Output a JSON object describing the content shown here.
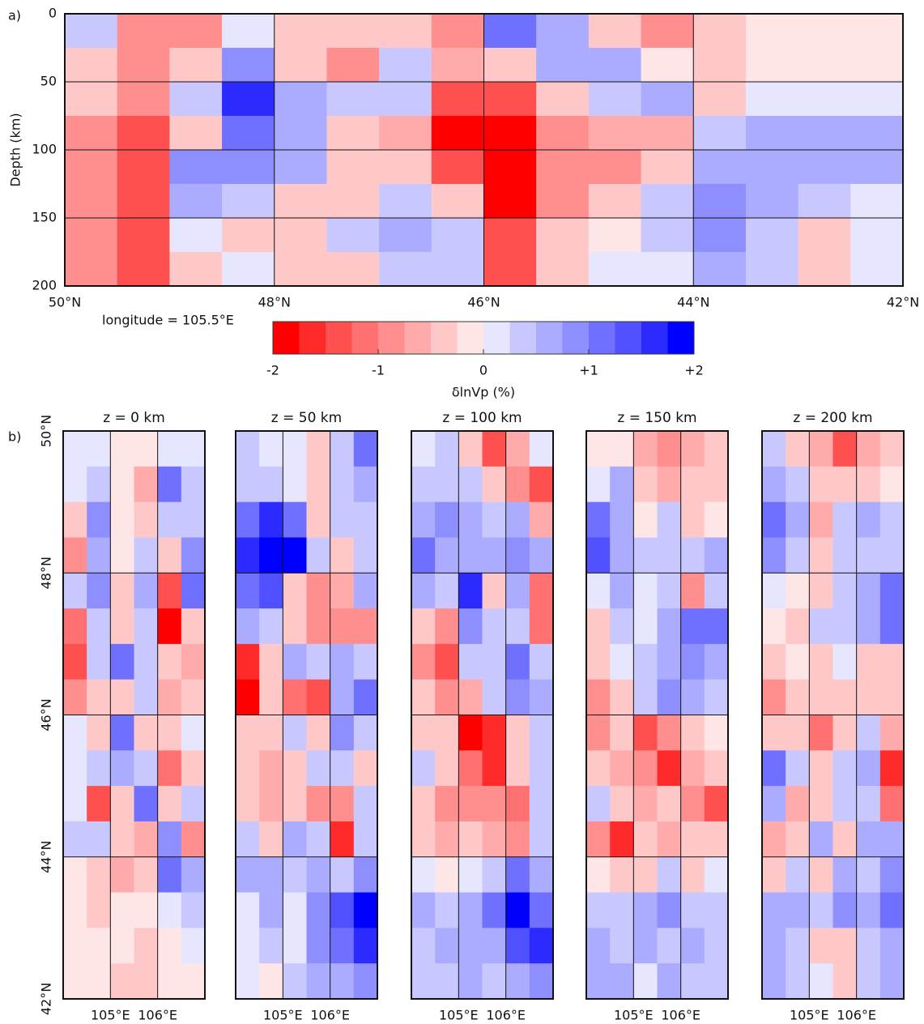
{
  "chart_data": [
    {
      "type": "heatmap",
      "panel_label": "a)",
      "annotation": "longitude = 105.5°E",
      "ylabel": "Depth (km)",
      "x": [
        49.75,
        49.25,
        48.75,
        48.25,
        47.75,
        47.25,
        46.75,
        46.25,
        45.75,
        45.25,
        44.75,
        44.25,
        43.75,
        43.25,
        42.75,
        42.25
      ],
      "y": [
        12.5,
        37.5,
        62.5,
        87.5,
        112.5,
        137.5,
        162.5,
        187.5
      ],
      "values": [
        [
          0.3,
          -0.8,
          -1,
          0.2,
          -0.5,
          -0.3,
          -0.5,
          -0.8,
          1.2,
          0.5,
          -0.3,
          -0.8,
          -0.3,
          -0.2,
          -0.2,
          -0.2
        ],
        [
          -0.3,
          -0.8,
          -0.5,
          0.8,
          -0.3,
          -0.8,
          0.3,
          -0.6,
          -0.3,
          0.5,
          0.6,
          -0.2,
          -0.3,
          -0.2,
          -0.2,
          -0.2
        ],
        [
          -0.5,
          -0.8,
          0.3,
          1.5,
          0.5,
          0.3,
          0.4,
          -1.5,
          -1.5,
          -0.3,
          0.3,
          0.5,
          -0.3,
          0.2,
          0.2,
          0.2
        ],
        [
          -0.8,
          -1.3,
          -0.3,
          1.0,
          0.5,
          -0.5,
          -0.7,
          -1.8,
          -1.8,
          -1.0,
          -0.6,
          -0.6,
          0.4,
          0.6,
          0.6,
          0.5
        ],
        [
          -0.8,
          -1.5,
          0.8,
          0.9,
          0.5,
          -0.3,
          -0.5,
          -1.5,
          -2,
          -1.0,
          -0.8,
          -0.5,
          0.5,
          0.5,
          0.7,
          0.5
        ],
        [
          -0.8,
          -1.3,
          0.5,
          0.4,
          -0.3,
          -0.3,
          0.3,
          -0.5,
          -1.8,
          -0.8,
          -0.3,
          0.3,
          0.8,
          0.5,
          0.3,
          0.2
        ],
        [
          -0.8,
          -1.3,
          0.2,
          -0.3,
          -0.3,
          0.3,
          0.6,
          0.3,
          -1.5,
          -0.5,
          -0.2,
          0.3,
          0.9,
          0.4,
          -0.3,
          0.2
        ],
        [
          -0.8,
          -1.5,
          -0.3,
          0.2,
          -0.5,
          -0.3,
          0.3,
          0.3,
          -1.5,
          -0.3,
          0.2,
          0.2,
          0.6,
          0.3,
          -0.5,
          0.2
        ]
      ],
      "xlim": [
        50,
        42
      ],
      "ylim": [
        200,
        0
      ],
      "xticks": [
        {
          "value": 50,
          "label": "50°N"
        },
        {
          "value": 48,
          "label": "48°N"
        },
        {
          "value": 46,
          "label": "46°N"
        },
        {
          "value": 44,
          "label": "44°N"
        },
        {
          "value": 42,
          "label": "42°N"
        }
      ],
      "yticks": [
        0,
        50,
        100,
        150,
        200
      ],
      "grid": true,
      "colorbar": {
        "label": "δlnVp (%)",
        "clim": [
          -2,
          2
        ],
        "ticks": [
          -2,
          -1,
          0,
          {
            "value": 1,
            "label": "+1"
          },
          {
            "value": 2,
            "label": "+2"
          }
        ],
        "colors": [
          "#ff0000",
          "#ff2b2b",
          "#ff5050",
          "#ff7070",
          "#ff8e8e",
          "#ffabab",
          "#ffc8c8",
          "#ffe6e6",
          "#e6e6ff",
          "#c8c8ff",
          "#ababff",
          "#8e8eff",
          "#7070ff",
          "#5050ff",
          "#2b2bff",
          "#0000ff"
        ]
      }
    },
    {
      "type": "heatmap",
      "panel_label": "b)",
      "title": "z = 0 km",
      "x": [
        104.25,
        104.75,
        105.25,
        105.75,
        106.25,
        106.75
      ],
      "y": [
        49.75,
        49.25,
        48.75,
        48.25,
        47.75,
        47.25,
        46.75,
        46.25,
        45.75,
        45.25,
        44.75,
        44.25,
        43.75,
        43.25,
        42.75,
        42.25
      ],
      "values": [
        [
          0.2,
          0.2,
          -0.2,
          -0.2,
          0.2,
          0.2
        ],
        [
          0.2,
          0.3,
          -0.2,
          -0.7,
          1.0,
          0.3
        ],
        [
          -0.3,
          0.8,
          -0.2,
          -0.5,
          0.4,
          0.3
        ],
        [
          -1,
          0.7,
          -0.2,
          0.3,
          -0.3,
          0.8
        ],
        [
          0.3,
          0.8,
          -0.4,
          0.5,
          -1.5,
          1.2
        ],
        [
          -1.2,
          0.3,
          -0.3,
          0.3,
          -1.8,
          -0.3
        ],
        [
          -1.5,
          0.4,
          1.0,
          0.3,
          -0.5,
          -0.6
        ],
        [
          -0.8,
          -0.5,
          -0.5,
          0.3,
          -0.6,
          -0.3
        ],
        [
          0.2,
          -0.3,
          1.0,
          -0.5,
          -0.5,
          0.2
        ],
        [
          0.2,
          0.3,
          0.5,
          0.4,
          -1.2,
          -0.3
        ],
        [
          0.2,
          -1.3,
          -0.3,
          1.0,
          -0.3,
          0.3
        ],
        [
          0.3,
          0.3,
          -0.3,
          -0.6,
          0.8,
          -1.0
        ],
        [
          -0.2,
          -0.3,
          -0.6,
          -0.3,
          1.0,
          0.6
        ],
        [
          -0.2,
          -0.3,
          -0.2,
          -0.2,
          0.2,
          0.3
        ],
        [
          -0.2,
          -0.2,
          -0.2,
          -0.4,
          -0.2,
          0.2
        ],
        [
          -0.2,
          -0.2,
          -0.3,
          -0.3,
          -0.2,
          -0.2
        ]
      ],
      "xlim": [
        104,
        107
      ],
      "ylim": [
        42,
        50
      ],
      "xticks": [
        {
          "value": 105,
          "label": "105°E"
        },
        {
          "value": 106,
          "label": "106°E"
        }
      ],
      "yticks": [
        {
          "value": 42,
          "label": "42°N"
        },
        {
          "value": 44,
          "label": "44°N"
        },
        {
          "value": 46,
          "label": "46°N"
        },
        {
          "value": 48,
          "label": "48°N"
        },
        {
          "value": 50,
          "label": "50°N"
        }
      ],
      "grid": true
    },
    {
      "type": "heatmap",
      "title": "z = 50 km",
      "x": [
        104.25,
        104.75,
        105.25,
        105.75,
        106.25,
        106.75
      ],
      "y": [
        49.75,
        49.25,
        48.75,
        48.25,
        47.75,
        47.25,
        46.75,
        46.25,
        45.75,
        45.25,
        44.75,
        44.25,
        43.75,
        43.25,
        42.75,
        42.25
      ],
      "values": [
        [
          0.3,
          0.2,
          0.2,
          -0.4,
          0.3,
          1.0
        ],
        [
          0.3,
          0.3,
          0.2,
          -0.5,
          0.3,
          0.6
        ],
        [
          1.2,
          1.5,
          1.0,
          -0.3,
          0.3,
          0.4
        ],
        [
          1.5,
          2.0,
          1.8,
          0.3,
          -0.3,
          0.3
        ],
        [
          1.0,
          1.4,
          -0.5,
          -0.8,
          -0.6,
          0.6
        ],
        [
          0.5,
          0.3,
          -0.5,
          -1.0,
          -0.8,
          -1.0
        ],
        [
          -1.6,
          -0.3,
          0.5,
          0.3,
          0.5,
          0.3
        ],
        [
          -1.8,
          -0.4,
          -1.2,
          -1.5,
          0.5,
          1.2
        ],
        [
          -0.5,
          -0.5,
          0.3,
          -0.3,
          0.8,
          0.3
        ],
        [
          -0.4,
          -0.6,
          -0.3,
          0.3,
          0.3,
          -0.3
        ],
        [
          -0.3,
          -0.6,
          -0.3,
          -0.8,
          -1.0,
          0.3
        ],
        [
          0.3,
          -0.3,
          0.5,
          0.4,
          -1.6,
          0.3
        ],
        [
          0.5,
          0.6,
          0.3,
          0.5,
          0.4,
          0.8
        ],
        [
          0.2,
          0.6,
          0.2,
          0.8,
          1.4,
          2.0
        ],
        [
          0.2,
          0.3,
          0.2,
          0.8,
          1.2,
          1.6
        ],
        [
          0.2,
          -0.2,
          0.3,
          0.6,
          0.5,
          0.8
        ]
      ],
      "xlim": [
        104,
        107
      ],
      "ylim": [
        42,
        50
      ],
      "xticks": [
        {
          "value": 105,
          "label": "105°E"
        },
        {
          "value": 106,
          "label": "106°E"
        }
      ],
      "yticks": [
        44,
        46,
        48
      ],
      "ytick_labels": false,
      "grid": true
    },
    {
      "type": "heatmap",
      "title": "z = 100 km",
      "x": [
        104.25,
        104.75,
        105.25,
        105.75,
        106.25,
        106.75
      ],
      "y": [
        49.75,
        49.25,
        48.75,
        48.25,
        47.75,
        47.25,
        46.75,
        46.25,
        45.75,
        45.25,
        44.75,
        44.25,
        43.75,
        43.25,
        42.75,
        42.25
      ],
      "values": [
        [
          0.2,
          0.3,
          -0.3,
          -1.3,
          -0.6,
          0.2
        ],
        [
          0.3,
          0.4,
          0.3,
          -0.5,
          -0.8,
          -1.5
        ],
        [
          0.5,
          0.8,
          0.5,
          0.3,
          0.5,
          -0.6
        ],
        [
          1.0,
          0.6,
          0.5,
          0.6,
          0.8,
          0.5
        ],
        [
          0.5,
          0.4,
          1.6,
          -0.3,
          0.5,
          -1.2
        ],
        [
          -0.3,
          -1.0,
          0.8,
          0.3,
          0.3,
          -1.2
        ],
        [
          -1.0,
          -1.5,
          0.3,
          0.3,
          1.2,
          0.3
        ],
        [
          -0.3,
          -0.8,
          -0.6,
          0.3,
          0.8,
          0.5
        ],
        [
          -0.5,
          -0.3,
          -1.8,
          -1.6,
          -0.3,
          0.3
        ],
        [
          0.3,
          -0.5,
          -1.2,
          -1.6,
          -0.4,
          0.3
        ],
        [
          -0.5,
          -0.8,
          -0.8,
          -1.0,
          -1.2,
          0.3
        ],
        [
          -0.5,
          -0.6,
          -0.3,
          -0.6,
          -1.0,
          0.3
        ],
        [
          0.2,
          -0.2,
          0.2,
          0.3,
          1.0,
          0.5
        ],
        [
          0.5,
          0.3,
          0.5,
          1.0,
          1.8,
          1.0
        ],
        [
          0.3,
          0.5,
          0.6,
          0.6,
          1.4,
          1.6
        ],
        [
          0.4,
          0.3,
          0.5,
          0.3,
          0.6,
          0.8
        ]
      ],
      "xlim": [
        104,
        107
      ],
      "ylim": [
        42,
        50
      ],
      "xticks": [
        {
          "value": 105,
          "label": "105°E"
        },
        {
          "value": 106,
          "label": "106°E"
        }
      ],
      "yticks": [
        44,
        46,
        48
      ],
      "ytick_labels": false,
      "grid": true
    },
    {
      "type": "heatmap",
      "title": "z = 150 km",
      "x": [
        104.25,
        104.75,
        105.25,
        105.75,
        106.25,
        106.75
      ],
      "y": [
        49.75,
        49.25,
        48.75,
        48.25,
        47.75,
        47.25,
        46.75,
        46.25,
        45.75,
        45.25,
        44.75,
        44.25,
        43.75,
        43.25,
        42.75,
        42.25
      ],
      "values": [
        [
          -0.2,
          -0.2,
          -0.6,
          -1.0,
          -0.6,
          -0.3
        ],
        [
          0.2,
          0.5,
          -0.3,
          -0.6,
          -0.5,
          -0.3
        ],
        [
          1.0,
          0.6,
          -0.2,
          0.3,
          -0.3,
          -0.2
        ],
        [
          1.4,
          0.6,
          0.3,
          0.4,
          0.3,
          0.5
        ],
        [
          0.2,
          0.5,
          0.2,
          0.3,
          -1.0,
          0.3
        ],
        [
          -0.3,
          0.3,
          0.2,
          0.5,
          1.0,
          1.2
        ],
        [
          -0.5,
          0.2,
          0.3,
          0.6,
          0.8,
          0.6
        ],
        [
          -1.0,
          -0.3,
          0.4,
          0.8,
          0.5,
          0.3
        ],
        [
          -0.8,
          -0.5,
          -1.5,
          -0.8,
          -0.3,
          -0.2
        ],
        [
          -0.3,
          -0.6,
          -1.0,
          -1.6,
          -0.6,
          -0.3
        ],
        [
          0.3,
          -0.5,
          -0.6,
          -0.3,
          -0.8,
          -1.5
        ],
        [
          -1.0,
          -1.6,
          -0.5,
          -0.6,
          -0.5,
          -0.3
        ],
        [
          -0.2,
          -0.3,
          -0.3,
          0.3,
          -0.3,
          0.2
        ],
        [
          0.3,
          0.4,
          0.5,
          0.8,
          0.4,
          0.3
        ],
        [
          0.5,
          0.3,
          0.5,
          0.4,
          0.6,
          0.3
        ],
        [
          0.6,
          0.6,
          0.2,
          0.5,
          0.4,
          0.3
        ]
      ],
      "xlim": [
        104,
        107
      ],
      "ylim": [
        42,
        50
      ],
      "xticks": [
        {
          "value": 105,
          "label": "105°E"
        },
        {
          "value": 106,
          "label": "106°E"
        }
      ],
      "yticks": [
        44,
        46,
        48
      ],
      "ytick_labels": false,
      "grid": true
    },
    {
      "type": "heatmap",
      "title": "z = 200 km",
      "x": [
        104.25,
        104.75,
        105.25,
        105.75,
        106.25,
        106.75
      ],
      "y": [
        49.75,
        49.25,
        48.75,
        48.25,
        47.75,
        47.25,
        46.75,
        46.25,
        45.75,
        45.25,
        44.75,
        44.25,
        43.75,
        43.25,
        42.75,
        42.25
      ],
      "values": [
        [
          0.3,
          -0.3,
          -0.6,
          -1.3,
          -0.6,
          -0.3
        ],
        [
          0.5,
          0.3,
          -0.3,
          -0.3,
          -0.3,
          -0.2
        ],
        [
          1.0,
          0.5,
          -0.6,
          0.3,
          0.5,
          0.3
        ],
        [
          0.8,
          0.3,
          -0.3,
          0.3,
          0.3,
          0.3
        ],
        [
          0.2,
          -0.2,
          -0.3,
          0.3,
          0.5,
          1.2
        ],
        [
          -0.2,
          -0.3,
          0.3,
          0.3,
          0.6,
          1.0
        ],
        [
          -0.3,
          -0.2,
          -0.3,
          0.2,
          -0.3,
          -0.3
        ],
        [
          -1.0,
          -0.5,
          -0.3,
          -0.5,
          -0.3,
          -0.3
        ],
        [
          -0.5,
          -0.3,
          -1.2,
          -0.5,
          0.3,
          -0.6
        ],
        [
          1.2,
          0.3,
          -0.3,
          0.3,
          0.5,
          -1.6
        ],
        [
          0.5,
          -0.6,
          -0.3,
          0.3,
          0.3,
          -1.2
        ],
        [
          -0.6,
          -0.3,
          0.6,
          -0.3,
          0.6,
          0.6
        ],
        [
          -0.3,
          0.3,
          -0.3,
          0.5,
          0.3,
          0.8
        ],
        [
          0.5,
          0.6,
          0.3,
          0.8,
          0.5,
          1.2
        ],
        [
          0.5,
          0.3,
          -0.3,
          -0.5,
          0.3,
          0.6
        ],
        [
          0.6,
          0.3,
          0.2,
          -0.5,
          0.3,
          0.6
        ]
      ],
      "xlim": [
        104,
        107
      ],
      "ylim": [
        42,
        50
      ],
      "xticks": [
        {
          "value": 105,
          "label": "105°E"
        },
        {
          "value": 106,
          "label": "106°E"
        }
      ],
      "yticks": [
        44,
        46,
        48
      ],
      "ytick_labels": false,
      "grid": true
    }
  ]
}
